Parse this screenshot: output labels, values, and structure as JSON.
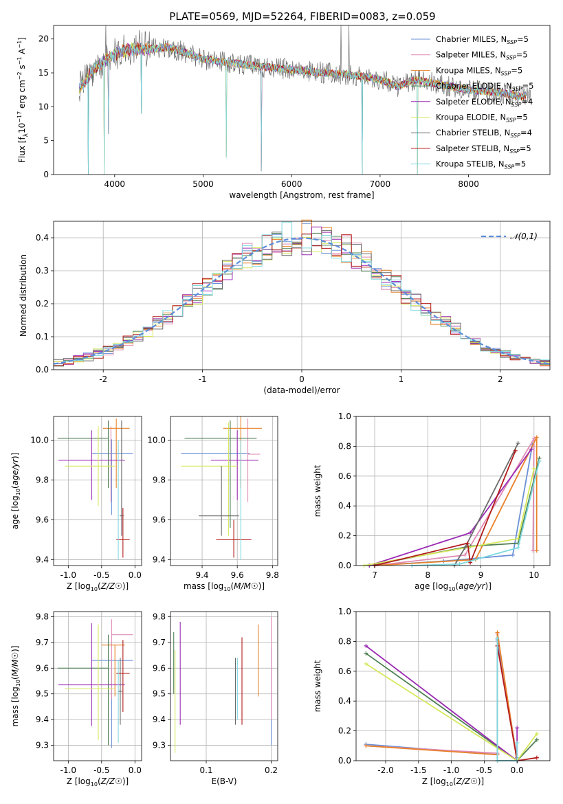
{
  "suptitle": "PLATE=0569, MJD=52264, FIBERID=0083, z=0.059",
  "colors": [
    "#6b8fd6",
    "#e08ab4",
    "#e8822b",
    "#4f7f53",
    "#9b2bb3",
    "#d6e85a",
    "#6a6a6a",
    "#b31a1a",
    "#7fd9e0"
  ],
  "series_names": [
    "Chabrier MILES, N_SSP=5",
    "Salpeter MILES, N_SSP=5",
    "Kroupa MILES, N_SSP=5",
    "Chabrier ELODIE, N_SSP=5",
    "Salpeter ELODIE, N_SSP=4",
    "Kroupa ELODIE, N_SSP=5",
    "Chabrier STELIB, N_SSP=4",
    "Salpeter STELIB, N_SSP=5",
    "Kroupa STELIB, N_SSP=5"
  ],
  "chart_data": [
    {
      "type": "line",
      "title": "",
      "xlabel": "wavelength [Angstrom, rest frame]",
      "ylabel": "Flux [f_λ10^-17 erg cm^-2 s^-1 A^-1]",
      "xlim": [
        3310,
        8920
      ],
      "ylim": [
        0,
        22
      ],
      "xticks": [
        4000,
        5000,
        6000,
        7000,
        8000
      ],
      "yticks": [
        0,
        5,
        10,
        15,
        20
      ],
      "grid": false,
      "legend_position": "top-right",
      "spectrum_knots": {
        "x": [
          3600,
          3700,
          3800,
          3900,
          4000,
          4200,
          4400,
          4600,
          4800,
          5000,
          5300,
          5600,
          6000,
          6400,
          6800,
          7000,
          7200,
          7400,
          7600,
          7800,
          8000,
          8200,
          8400,
          8600,
          8700
        ],
        "y": [
          12.5,
          14.5,
          16.0,
          17.0,
          17.8,
          18.5,
          18.5,
          18.8,
          18.0,
          17.0,
          16.5,
          16.0,
          15.5,
          15.0,
          14.5,
          14.0,
          13.0,
          14.0,
          13.5,
          13.0,
          12.5,
          12.3,
          12.0,
          11.5,
          12.0
        ]
      },
      "spectrum_dips": [
        {
          "x": 3700,
          "y": 0
        },
        {
          "x": 3880,
          "y": 0
        },
        {
          "x": 3930,
          "y": 6.0
        },
        {
          "x": 4300,
          "y": 9.0
        },
        {
          "x": 5260,
          "y": 2.5
        },
        {
          "x": 5660,
          "y": 0.5
        },
        {
          "x": 6800,
          "y": 0
        },
        {
          "x": 7420,
          "y": 0
        }
      ],
      "spectrum_peaks": [
        {
          "x": 3900,
          "y": 22
        },
        {
          "x": 6560,
          "y": 22
        },
        {
          "x": 6650,
          "y": 22
        }
      ]
    },
    {
      "type": "histogram",
      "xlabel": "(data-model)/error",
      "ylabel": "Normed distribution",
      "xlim": [
        -2.5,
        2.5
      ],
      "ylim": [
        0,
        0.45
      ],
      "xticks": [
        -2,
        -1,
        0,
        1,
        2
      ],
      "yticks": [
        0.0,
        0.1,
        0.2,
        0.3,
        0.4
      ],
      "grid": true,
      "legend_position": "top-right",
      "reference_curve": {
        "name": "𝒩(0,1)",
        "mean": 0,
        "sigma": 1
      },
      "bin_width": 0.1
    },
    {
      "type": "errorbar",
      "xlabel": "Z [log10(Z/Z☉)]",
      "ylabel": "age  [log10(age/yr)]",
      "xlim": [
        -1.22,
        0.1
      ],
      "ylim": [
        9.37,
        10.12
      ],
      "xticks": [
        -1.0,
        -0.5,
        0.0
      ],
      "yticks": [
        9.4,
        9.6,
        9.8,
        10.0
      ],
      "grid": true,
      "points": [
        {
          "x": -0.35,
          "y": 9.935,
          "xerr": [
            0.3,
            0.32
          ],
          "yerr": [
            0.31,
            0.07
          ]
        },
        {
          "x": -0.36,
          "y": 9.93,
          "xerr": [
            0.0,
            0.0
          ],
          "yerr": [
            0.24,
            0.14
          ]
        },
        {
          "x": -0.28,
          "y": 10.06,
          "xerr": [
            0.2,
            0.2
          ],
          "yerr": [
            0.3,
            0.05
          ]
        },
        {
          "x": -0.4,
          "y": 10.01,
          "xerr": [
            0.76,
            0.0
          ],
          "yerr": [
            0.25,
            0.09
          ]
        },
        {
          "x": -0.65,
          "y": 9.9,
          "xerr": [
            0.5,
            0.5
          ],
          "yerr": [
            0.2,
            0.15
          ]
        },
        {
          "x": -0.55,
          "y": 9.87,
          "xerr": [
            0.5,
            0.25
          ],
          "yerr": [
            0.2,
            0.2
          ]
        },
        {
          "x": -0.2,
          "y": 9.62,
          "xerr": [
            0.03,
            0.03
          ],
          "yerr": [
            0.1,
            0.48
          ]
        },
        {
          "x": -0.18,
          "y": 9.5,
          "xerr": [
            0.1,
            0.1
          ],
          "yerr": [
            0.09,
            0.16
          ]
        },
        {
          "x": -0.25,
          "y": 9.7,
          "xerr": [
            0.0,
            0.0
          ],
          "yerr": [
            0.3,
            0.3
          ]
        }
      ]
    },
    {
      "type": "errorbar",
      "xlabel": "mass [log10(M/M☉)]",
      "ylabel": "",
      "xlim": [
        9.22,
        9.83
      ],
      "ylim": [
        9.37,
        10.12
      ],
      "xticks": [
        9.4,
        9.6,
        9.8
      ],
      "yticks": [
        9.4,
        9.6,
        9.8,
        10.0
      ],
      "grid": true,
      "points": [
        {
          "x": 9.52,
          "y": 9.935,
          "xerr": [
            0.24,
            0.15
          ],
          "yerr": [
            0.0,
            0.0
          ]
        },
        {
          "x": 9.66,
          "y": 9.93,
          "xerr": [
            0.0,
            0.07
          ],
          "yerr": [
            0.24,
            0.18
          ]
        },
        {
          "x": 9.62,
          "y": 10.06,
          "xerr": [
            0.1,
            0.12
          ],
          "yerr": [
            0.3,
            0.06
          ]
        },
        {
          "x": 9.56,
          "y": 10.01,
          "xerr": [
            0.26,
            0.15
          ],
          "yerr": [
            0.45,
            0.09
          ]
        },
        {
          "x": 9.6,
          "y": 9.9,
          "xerr": [
            0.15,
            0.12
          ],
          "yerr": [
            0.2,
            0.15
          ]
        },
        {
          "x": 9.55,
          "y": 9.87,
          "xerr": [
            0.27,
            0.05
          ],
          "yerr": [
            0.35,
            0.22
          ]
        },
        {
          "x": 9.51,
          "y": 9.62,
          "xerr": [
            0.13,
            0.1
          ],
          "yerr": [
            0.1,
            0.25
          ]
        },
        {
          "x": 9.58,
          "y": 9.5,
          "xerr": [
            0.1,
            0.1
          ],
          "yerr": [
            0.09,
            0.1
          ]
        },
        {
          "x": 9.62,
          "y": 9.7,
          "xerr": [
            0.0,
            0.0
          ],
          "yerr": [
            0.3,
            0.3
          ]
        }
      ]
    },
    {
      "type": "line",
      "xlabel": "age  [log10(age/yr)]",
      "ylabel": "mass weight",
      "xlim": [
        6.65,
        10.3
      ],
      "ylim": [
        0,
        1
      ],
      "xticks": [
        7,
        8,
        9,
        10
      ],
      "yticks": [
        0.0,
        0.2,
        0.4,
        0.6,
        0.8,
        1.0
      ],
      "grid": true,
      "series": [
        {
          "x": [
            7.0,
            8.3,
            9.6,
            9.97
          ],
          "y": [
            0.0,
            0.03,
            0.07,
            0.81
          ]
        },
        {
          "x": [
            7.0,
            8.7,
            10.0,
            9.98
          ],
          "y": [
            0.0,
            0.07,
            0.85,
            0.1
          ]
        },
        {
          "x": [
            7.0,
            8.9,
            10.05,
            10.05
          ],
          "y": [
            0.0,
            0.04,
            0.86,
            0.1
          ]
        },
        {
          "x": [
            6.9,
            8.8,
            9.7,
            10.1
          ],
          "y": [
            0.0,
            0.13,
            0.15,
            0.72
          ]
        },
        {
          "x": [
            6.9,
            8.8,
            9.95
          ],
          "y": [
            0.0,
            0.22,
            0.78
          ]
        },
        {
          "x": [
            6.8,
            9.7,
            10.0
          ],
          "y": [
            0.0,
            0.18,
            0.65
          ]
        },
        {
          "x": [
            8.5,
            8.7,
            9.7
          ],
          "y": [
            0.0,
            0.12,
            0.82
          ]
        },
        {
          "x": [
            7.0,
            8.75,
            8.8,
            9.65
          ],
          "y": [
            0.0,
            0.15,
            0.02,
            0.77
          ]
        },
        {
          "x": [
            7.7,
            8.6,
            9.7,
            10.1
          ],
          "y": [
            0.0,
            0.01,
            0.12,
            0.7
          ]
        }
      ]
    },
    {
      "type": "errorbar",
      "xlabel": "Z [log10(Z/Z☉)]",
      "ylabel": "mass [log10(M/M☉)]",
      "xlim": [
        -1.22,
        0.1
      ],
      "ylim": [
        9.24,
        9.82
      ],
      "xticks": [
        -1.0,
        -0.5,
        0.0
      ],
      "yticks": [
        9.3,
        9.4,
        9.5,
        9.6,
        9.7,
        9.8
      ],
      "grid": true,
      "points": [
        {
          "x": -0.35,
          "y": 9.63,
          "xerr": [
            0.3,
            0.32
          ],
          "yerr": [
            0.34,
            0.0
          ]
        },
        {
          "x": -0.35,
          "y": 9.73,
          "xerr": [
            0.0,
            0.32
          ],
          "yerr": [
            0.25,
            0.06
          ]
        },
        {
          "x": -0.3,
          "y": 9.69,
          "xerr": [
            0.2,
            0.15
          ],
          "yerr": [
            0.2,
            0.0
          ]
        },
        {
          "x": -0.4,
          "y": 9.6,
          "xerr": [
            0.76,
            0.0
          ],
          "yerr": [
            0.3,
            0.13
          ]
        },
        {
          "x": -0.65,
          "y": 9.535,
          "xerr": [
            0.5,
            0.5
          ],
          "yerr": [
            0.16,
            0.24
          ]
        },
        {
          "x": -0.55,
          "y": 9.52,
          "xerr": [
            0.5,
            0.25
          ],
          "yerr": [
            0.2,
            0.25
          ]
        },
        {
          "x": -0.22,
          "y": 9.51,
          "xerr": [
            0.03,
            0.03
          ],
          "yerr": [
            0.13,
            0.13
          ]
        },
        {
          "x": -0.18,
          "y": 9.58,
          "xerr": [
            0.1,
            0.1
          ],
          "yerr": [
            0.15,
            0.13
          ]
        },
        {
          "x": -0.25,
          "y": 9.51,
          "xerr": [
            0.0,
            0.0
          ],
          "yerr": [
            0.2,
            0.12
          ]
        }
      ]
    },
    {
      "type": "errorbar",
      "xlabel": "E(B-V)",
      "ylabel": "",
      "xlim": [
        0.045,
        0.21
      ],
      "ylim": [
        9.24,
        9.82
      ],
      "xticks": [
        0.1,
        0.2
      ],
      "yticks": [
        9.3,
        9.4,
        9.5,
        9.6,
        9.7,
        9.8
      ],
      "grid": true,
      "points": [
        {
          "x": 0.2,
          "y": 9.5,
          "xerr": [
            0,
            0
          ],
          "yerr": [
            0.2,
            0.18
          ]
        },
        {
          "x": 0.2,
          "y": 9.6,
          "xerr": [
            0,
            0
          ],
          "yerr": [
            0.2,
            0.2
          ]
        },
        {
          "x": 0.18,
          "y": 9.63,
          "xerr": [
            0,
            0
          ],
          "yerr": [
            0.14,
            0.14
          ]
        },
        {
          "x": 0.05,
          "y": 9.6,
          "xerr": [
            0,
            0
          ],
          "yerr": [
            0.1,
            0.14
          ]
        },
        {
          "x": 0.06,
          "y": 9.58,
          "xerr": [
            0,
            0
          ],
          "yerr": [
            0.2,
            0.2
          ]
        },
        {
          "x": 0.052,
          "y": 9.47,
          "xerr": [
            0,
            0
          ],
          "yerr": [
            0.2,
            0.2
          ]
        },
        {
          "x": 0.145,
          "y": 9.51,
          "xerr": [
            0,
            0
          ],
          "yerr": [
            0.13,
            0.13
          ]
        },
        {
          "x": 0.155,
          "y": 9.55,
          "xerr": [
            0,
            0
          ],
          "yerr": [
            0.17,
            0.17
          ]
        },
        {
          "x": 0.148,
          "y": 9.52,
          "xerr": [
            0,
            0
          ],
          "yerr": [
            0.12,
            0.12
          ]
        }
      ]
    },
    {
      "type": "line",
      "xlabel": "Z [log10(Z/Z☉)]",
      "ylabel": "mass weight",
      "xlim": [
        -2.45,
        0.5
      ],
      "ylim": [
        0,
        1
      ],
      "xticks": [
        -2.0,
        -1.5,
        -1.0,
        -0.5,
        0.0
      ],
      "yticks": [
        0.0,
        0.2,
        0.4,
        0.6,
        0.8,
        1.0
      ],
      "grid": true,
      "series": [
        {
          "x": [
            -2.3,
            -0.3,
            -0.3,
            0.0,
            0.0
          ],
          "y": [
            0.11,
            0.04,
            0.81,
            0.02,
            0.01
          ]
        },
        {
          "x": [
            -2.3,
            -0.3,
            -0.3,
            0.0,
            0.0
          ],
          "y": [
            0.1,
            0.05,
            0.85,
            0.0,
            0.0
          ]
        },
        {
          "x": [
            -2.3,
            -0.3,
            -0.3,
            0.0,
            0.0
          ],
          "y": [
            0.1,
            0.04,
            0.86,
            0.0,
            0.0
          ]
        },
        {
          "x": [
            -2.3,
            0.0,
            0.3
          ],
          "y": [
            0.72,
            0.0,
            0.14
          ]
        },
        {
          "x": [
            -2.3,
            0.0,
            0.0
          ],
          "y": [
            0.77,
            0.0,
            0.22
          ]
        },
        {
          "x": [
            -2.3,
            0.0,
            0.3
          ],
          "y": [
            0.65,
            0.0,
            0.18
          ]
        },
        {
          "x": [
            -0.3,
            -0.3,
            0.0
          ],
          "y": [
            0.82,
            0.0,
            0.0
          ]
        },
        {
          "x": [
            -0.3,
            0.0,
            0.3
          ],
          "y": [
            0.77,
            0.0,
            0.02
          ]
        },
        {
          "x": [
            -0.3,
            -0.3,
            0.0,
            0.0
          ],
          "y": [
            0.82,
            0.0,
            0.0,
            0.12
          ]
        }
      ]
    }
  ]
}
